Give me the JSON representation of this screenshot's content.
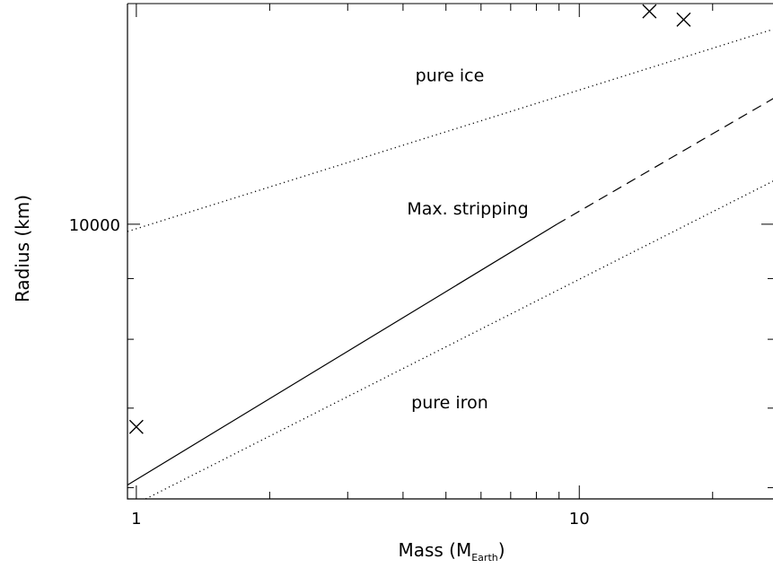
{
  "chart_data": {
    "type": "line",
    "xlabel": "Mass (M",
    "xlabel_sub": "Earth",
    "xlabel_close": ")",
    "ylabel": "Radius (km)",
    "x_scale": "log",
    "y_scale": "log",
    "xlim": [
      0.955,
      27.5
    ],
    "ylim": [
      5870,
      15340
    ],
    "x_ticks": [
      1,
      10
    ],
    "x_tick_labels": [
      "1",
      "10"
    ],
    "y_ticks": [
      10000
    ],
    "y_tick_labels": [
      "10000"
    ],
    "grid": false,
    "series": [
      {
        "style": "dotted",
        "x": [
          0.955,
          27.5
        ],
        "y": [
          9860,
          14600
        ]
      },
      {
        "style": "solid",
        "x": [
          0.955,
          8.9
        ],
        "y": [
          6030,
          10000
        ]
      },
      {
        "style": "dashed",
        "x": [
          8.9,
          27.5
        ],
        "y": [
          10000,
          12770
        ]
      },
      {
        "style": "dotted",
        "x": [
          1.05,
          27.5
        ],
        "y": [
          5870,
          10880
        ]
      }
    ],
    "points": [
      {
        "x": 1.0,
        "y": 6750
      },
      {
        "x": 14.4,
        "y": 15110
      },
      {
        "x": 17.2,
        "y": 14870
      }
    ],
    "annotations": [
      {
        "text": "pure ice",
        "x": 5.1,
        "y": 13200
      },
      {
        "text": "Max. stripping",
        "x": 5.6,
        "y": 10190
      },
      {
        "text": "pure iron",
        "x": 5.1,
        "y": 7000
      }
    ]
  }
}
